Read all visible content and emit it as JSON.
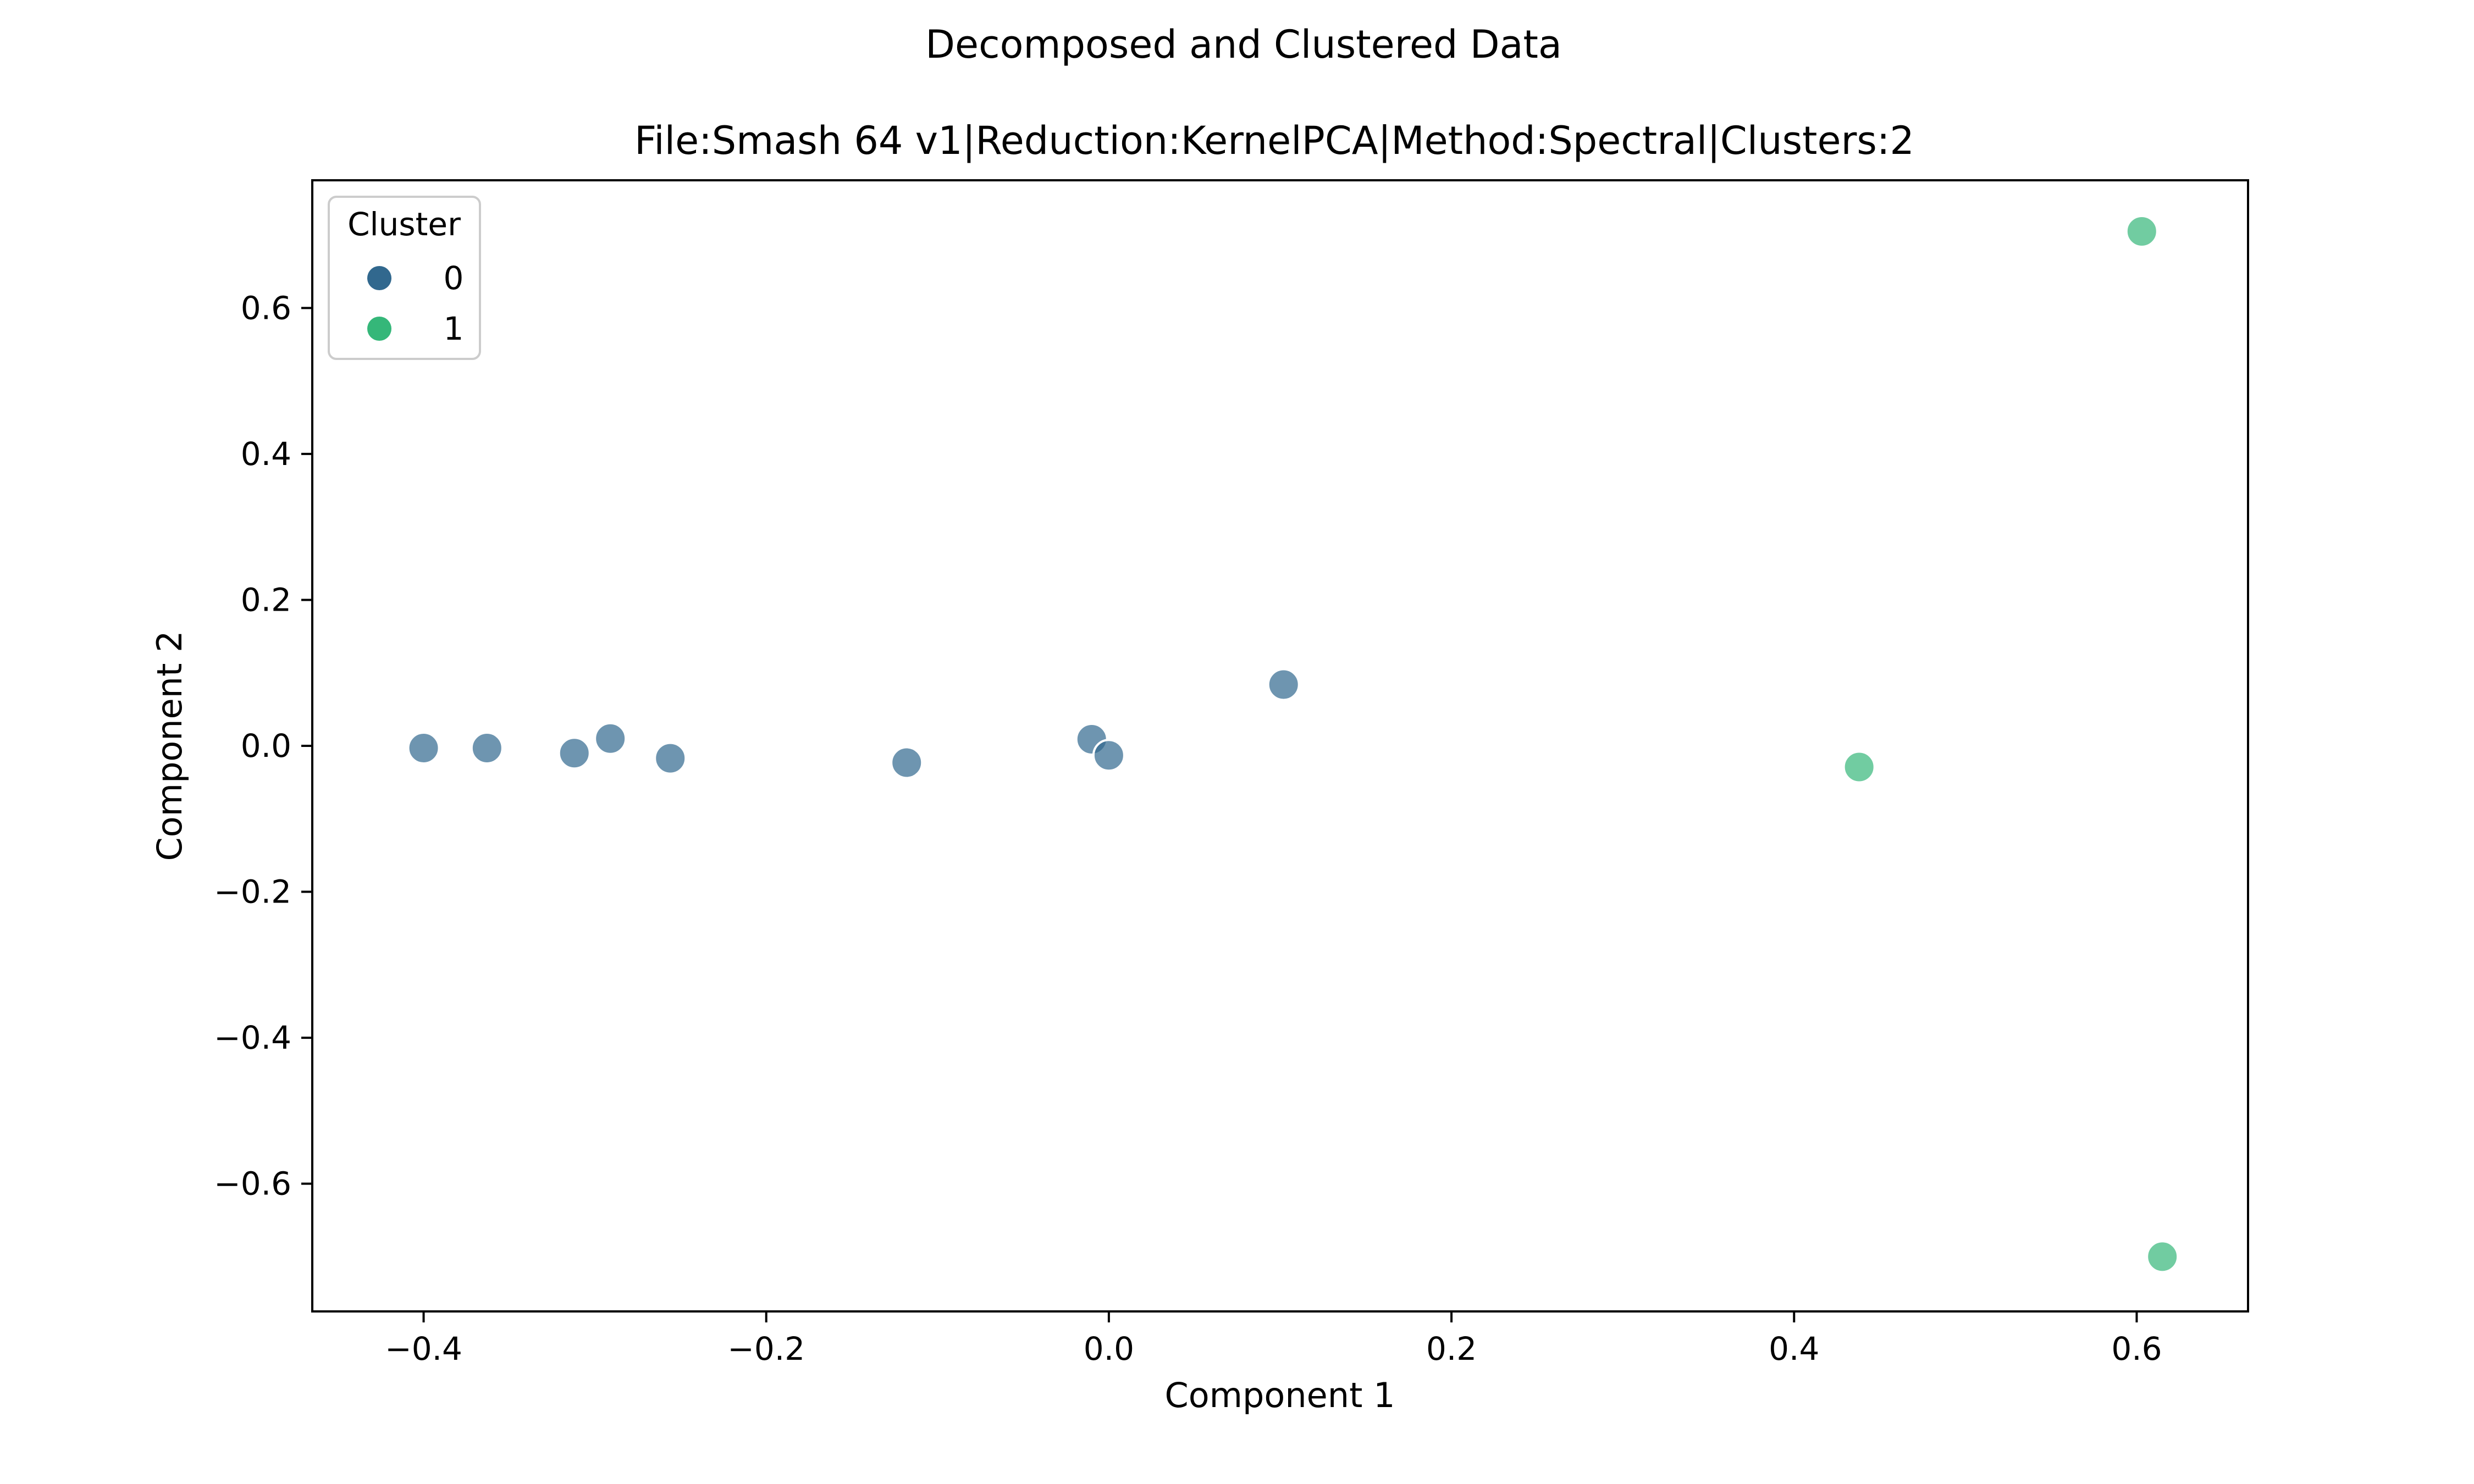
{
  "chart_data": {
    "type": "scatter",
    "suptitle": "Decomposed and Clustered Data",
    "title": "File:Smash 64 v1|Reduction:KernelPCA|Method:Spectral|Clusters:2",
    "xlabel": "Component 1",
    "ylabel": "Component 2",
    "xlim": [
      -0.465,
      0.665
    ],
    "ylim": [
      -0.775,
      0.775
    ],
    "x_ticks": [
      -0.4,
      -0.2,
      0.0,
      0.2,
      0.4,
      0.6
    ],
    "x_tick_labels": [
      "−0.4",
      "−0.2",
      "0.0",
      "0.2",
      "0.4",
      "0.6"
    ],
    "y_ticks": [
      -0.6,
      -0.4,
      -0.2,
      0.0,
      0.2,
      0.4,
      0.6
    ],
    "y_tick_labels": [
      "−0.6",
      "−0.4",
      "−0.2",
      "0.0",
      "0.2",
      "0.4",
      "0.6"
    ],
    "grid": false,
    "legend": {
      "title": "Cluster",
      "placement": "upper-left",
      "entries": [
        {
          "label": "0",
          "color": "#31688e"
        },
        {
          "label": "1",
          "color": "#35b779"
        }
      ]
    },
    "series": [
      {
        "name": "0",
        "color": "#31688e",
        "points": [
          {
            "x": -0.4,
            "y": -0.003
          },
          {
            "x": -0.363,
            "y": -0.003
          },
          {
            "x": -0.312,
            "y": -0.01
          },
          {
            "x": -0.291,
            "y": 0.01
          },
          {
            "x": -0.256,
            "y": -0.017
          },
          {
            "x": -0.118,
            "y": -0.023
          },
          {
            "x": -0.01,
            "y": 0.009
          },
          {
            "x": 0.0,
            "y": -0.013
          },
          {
            "x": 0.102,
            "y": 0.084
          }
        ]
      },
      {
        "name": "1",
        "color": "#35b779",
        "points": [
          {
            "x": 0.438,
            "y": -0.029
          },
          {
            "x": 0.603,
            "y": 0.705
          },
          {
            "x": 0.615,
            "y": -0.7
          }
        ]
      }
    ]
  }
}
